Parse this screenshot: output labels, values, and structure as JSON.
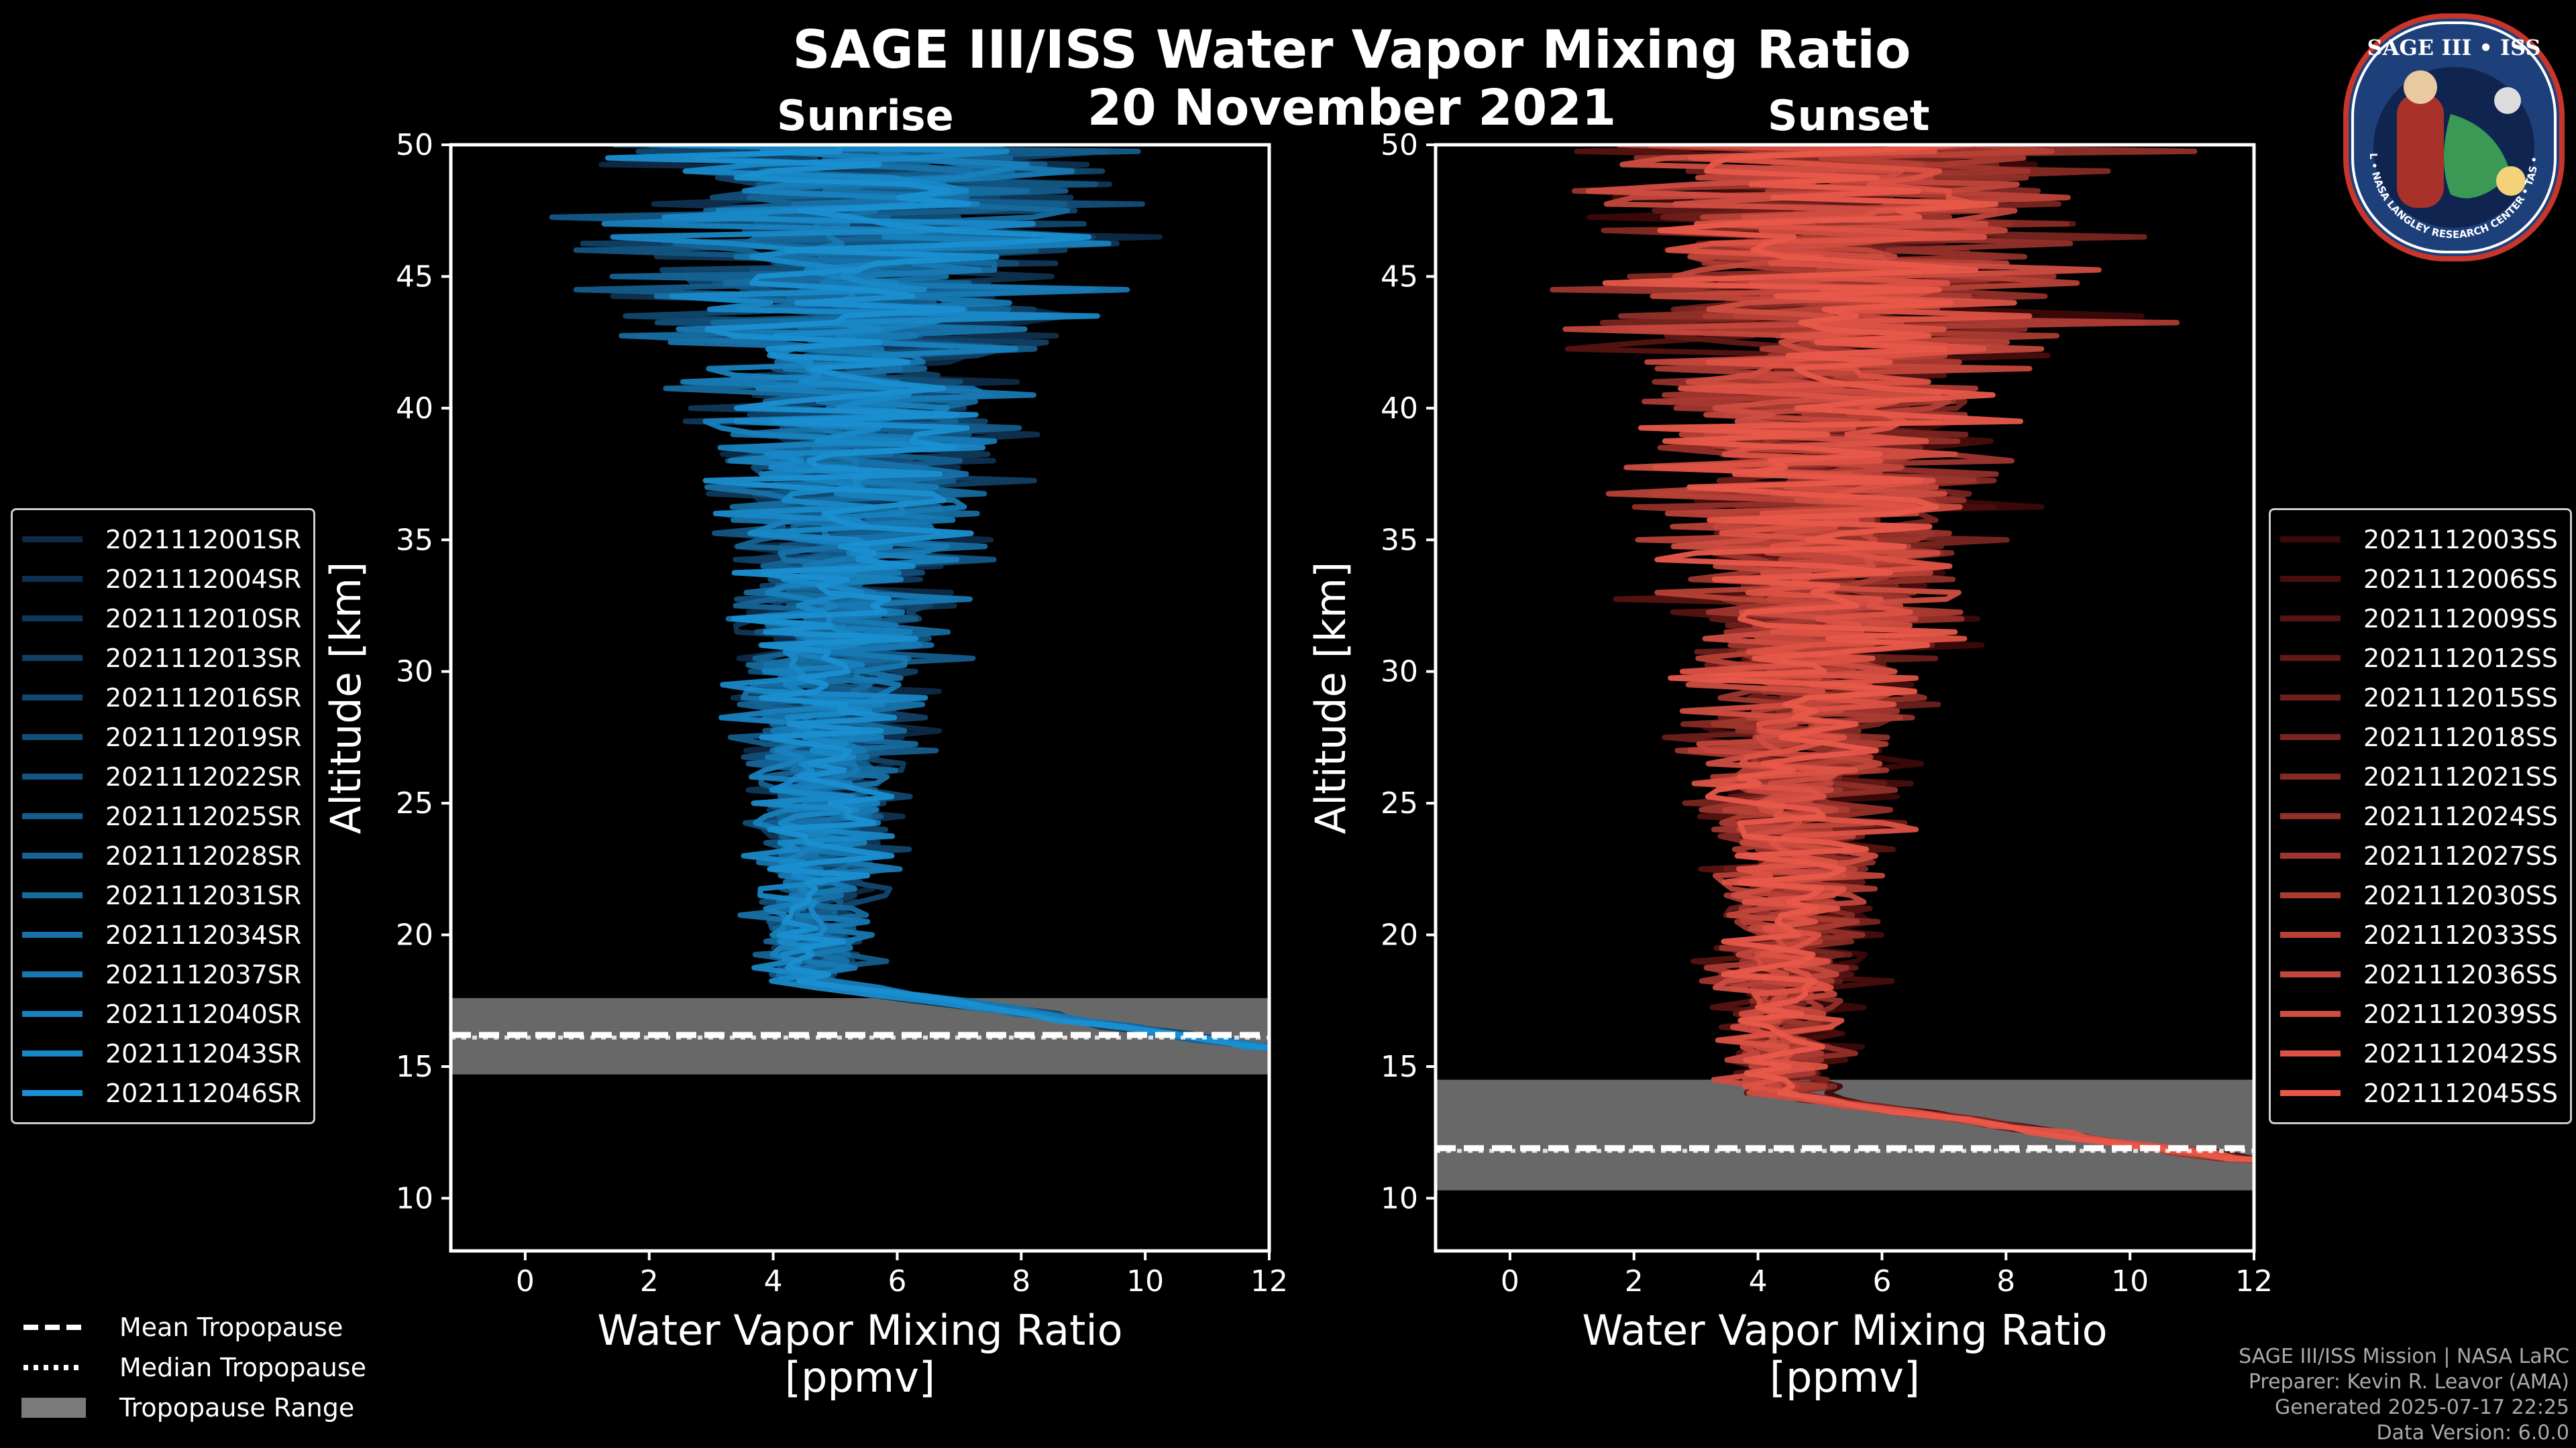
{
  "title": "SAGE III/ISS Water Vapor Mixing Ratio",
  "date": "20 November 2021",
  "panels": {
    "left_label": "Sunrise",
    "right_label": "Sunset"
  },
  "colors": {
    "sunrise": "#1a8fd1",
    "sunset": "#e8584a",
    "tropopause_band": "#7a7a7a"
  },
  "chart_data": [
    {
      "type": "line",
      "name": "Sunrise",
      "xlabel": "Water Vapor Mixing Ratio",
      "xlabel2": "[ppmv]",
      "ylabel": "Altitude [km]",
      "xlim": [
        -1.2,
        12
      ],
      "ylim": [
        8,
        50
      ],
      "xticks": [
        0,
        2,
        4,
        6,
        8,
        10,
        12
      ],
      "yticks": [
        10,
        15,
        20,
        25,
        30,
        35,
        40,
        45,
        50
      ],
      "tropopause": {
        "mean": 16.2,
        "median": 16.1,
        "range": [
          14.7,
          17.6
        ]
      },
      "series": [
        {
          "name": "2021112001SR"
        },
        {
          "name": "2021112004SR"
        },
        {
          "name": "2021112010SR"
        },
        {
          "name": "2021112013SR"
        },
        {
          "name": "2021112016SR"
        },
        {
          "name": "2021112019SR"
        },
        {
          "name": "2021112022SR"
        },
        {
          "name": "2021112025SR"
        },
        {
          "name": "2021112028SR"
        },
        {
          "name": "2021112031SR"
        },
        {
          "name": "2021112034SR"
        },
        {
          "name": "2021112037SR"
        },
        {
          "name": "2021112040SR"
        },
        {
          "name": "2021112043SR"
        },
        {
          "name": "2021112046SR"
        }
      ]
    },
    {
      "type": "line",
      "name": "Sunset",
      "xlabel": "Water Vapor Mixing Ratio",
      "xlabel2": "[ppmv]",
      "ylabel": "Altitude [km]",
      "xlim": [
        -1.2,
        12
      ],
      "ylim": [
        8,
        50
      ],
      "xticks": [
        0,
        2,
        4,
        6,
        8,
        10,
        12
      ],
      "yticks": [
        10,
        15,
        20,
        25,
        30,
        35,
        40,
        45,
        50
      ],
      "tropopause": {
        "mean": 11.9,
        "median": 11.8,
        "range": [
          10.3,
          14.5
        ]
      },
      "series": [
        {
          "name": "2021112003SS"
        },
        {
          "name": "2021112006SS"
        },
        {
          "name": "2021112009SS"
        },
        {
          "name": "2021112012SS"
        },
        {
          "name": "2021112015SS"
        },
        {
          "name": "2021112018SS"
        },
        {
          "name": "2021112021SS"
        },
        {
          "name": "2021112024SS"
        },
        {
          "name": "2021112027SS"
        },
        {
          "name": "2021112030SS"
        },
        {
          "name": "2021112033SS"
        },
        {
          "name": "2021112036SS"
        },
        {
          "name": "2021112039SS"
        },
        {
          "name": "2021112042SS"
        },
        {
          "name": "2021112045SS"
        }
      ]
    }
  ],
  "bottom_legend": {
    "mean": "Mean Tropopause",
    "median": "Median Tropopause",
    "range": "Tropopause Range"
  },
  "footer": {
    "line1": "SAGE III/ISS Mission | NASA LaRC",
    "line2": "Preparer: Kevin R. Leavor (AMA)",
    "line3": "Generated 2025-07-17 22:25",
    "line4": "Data Version: 6.0.0"
  },
  "logo": {
    "title": "SAGE III • ISS",
    "ring_text": "BALL • NASA LANGLEY RESEARCH CENTER • TAS • ESA"
  }
}
